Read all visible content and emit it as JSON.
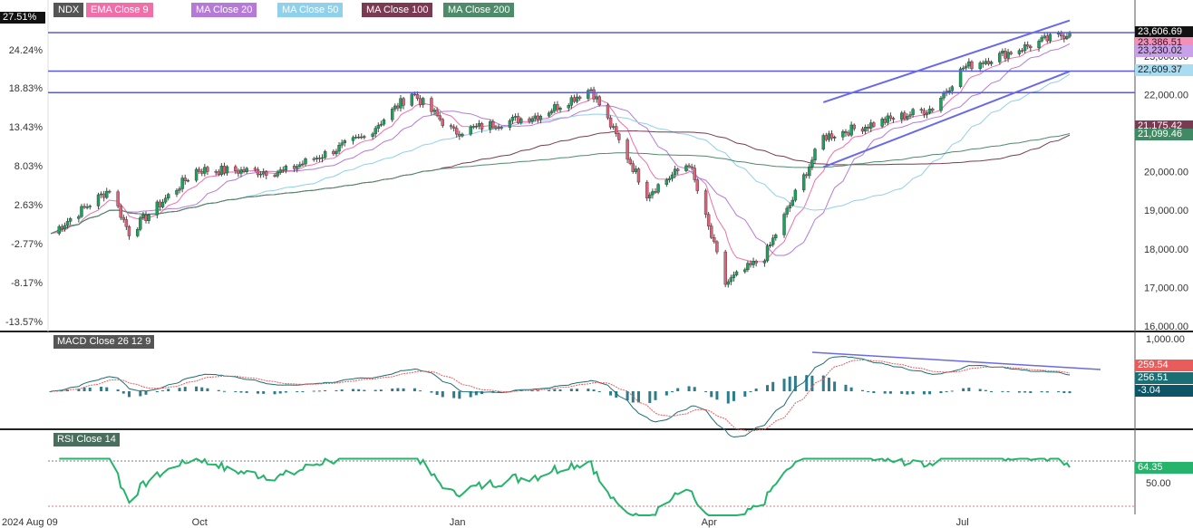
{
  "symbol": "NDX",
  "legend": [
    {
      "label": "NDX",
      "color": "#555555"
    },
    {
      "label": "EMA Close 9",
      "color": "#f06fa8"
    },
    {
      "label": "MA Close 20",
      "color": "#b57ad8"
    },
    {
      "label": "MA Close 50",
      "color": "#8fd0ea"
    },
    {
      "label": "MA Close 100",
      "color": "#7a3a52"
    },
    {
      "label": "MA Close 200",
      "color": "#4f8a6a"
    }
  ],
  "current_pct": "27.51%",
  "pct_axis": [
    "24.24%",
    "18.83%",
    "13.43%",
    "8.03%",
    "2.63%",
    "-2.77%",
    "-8.17%",
    "-13.57%"
  ],
  "price_axis": [
    "23,000.00",
    "22,000.00",
    "21,000.00",
    "20,000.00",
    "19,000.00",
    "18,000.00",
    "17,000.00",
    "16,000.00"
  ],
  "price_tags": [
    {
      "label": "23,606.69",
      "bg": "#111111",
      "fg": "#ffffff"
    },
    {
      "label": "23,386.51",
      "bg": "#f48fb8",
      "fg": "#222222"
    },
    {
      "label": "23,230.02",
      "bg": "#c9a0ea",
      "fg": "#222222"
    },
    {
      "label": "22,609.37",
      "bg": "#a9dcf0",
      "fg": "#222222"
    },
    {
      "label": "21,175.42",
      "bg": "#7a3a52",
      "fg": "#ffffff"
    },
    {
      "label": "21,099.46",
      "bg": "#3f8a62",
      "fg": "#ffffff"
    }
  ],
  "macd": {
    "label": "MACD Close 26 12 9",
    "axis": [
      "1,000.00"
    ],
    "tags": [
      {
        "label": "259.54",
        "bg": "#e85c5c",
        "fg": "#ffffff"
      },
      {
        "label": "256.51",
        "bg": "#1b6e73",
        "fg": "#ffffff"
      },
      {
        "label": "-3.04",
        "bg": "#0d5566",
        "fg": "#ffffff"
      }
    ]
  },
  "rsi": {
    "label": "RSI Close 14",
    "axis": [
      "50.00"
    ],
    "tag": {
      "label": "64.35",
      "bg": "#26b36b",
      "fg": "#ffffff"
    },
    "upper_level": 70,
    "lower_level": 30
  },
  "x_axis": [
    "2024 Aug 09",
    "Oct",
    "Jan",
    "Apr",
    "Jul"
  ],
  "chart_data": {
    "type": "candlestick",
    "title": "NDX",
    "period": [
      "2024-08-09",
      "2025-07"
    ],
    "y_range_price": [
      16000,
      23700
    ],
    "last_close": 23606.69,
    "approx_closes": [
      {
        "date": "2024-08-09",
        "close": 18400
      },
      {
        "date": "2024-08-30",
        "close": 19550
      },
      {
        "date": "2024-09-06",
        "close": 18420
      },
      {
        "date": "2024-09-30",
        "close": 20050
      },
      {
        "date": "2024-10-31",
        "close": 20000
      },
      {
        "date": "2024-11-29",
        "close": 20900
      },
      {
        "date": "2024-12-16",
        "close": 22050
      },
      {
        "date": "2024-12-31",
        "close": 21020
      },
      {
        "date": "2025-01-31",
        "close": 21480
      },
      {
        "date": "2025-02-18",
        "close": 22150
      },
      {
        "date": "2025-03-10",
        "close": 19430
      },
      {
        "date": "2025-03-25",
        "close": 20230
      },
      {
        "date": "2025-04-07",
        "close": 17100
      },
      {
        "date": "2025-04-21",
        "close": 17800
      },
      {
        "date": "2025-05-12",
        "close": 20900
      },
      {
        "date": "2025-06-20",
        "close": 21650
      },
      {
        "date": "2025-07-01",
        "close": 22700
      },
      {
        "date": "2025-07-30",
        "close": 23400
      },
      {
        "date": "2025-08-08",
        "close": 23606.69
      }
    ],
    "series": [
      {
        "name": "EMA Close 9",
        "last": 23386.51
      },
      {
        "name": "MA Close 20",
        "last": 23230.02
      },
      {
        "name": "MA Close 50",
        "last": 22609.37
      },
      {
        "name": "MA Close 100",
        "last": 21175.42
      },
      {
        "name": "MA Close 200",
        "last": 21099.46
      }
    ],
    "horizontal_levels": [
      23606.69,
      22609.37,
      22050
    ],
    "macd_last": {
      "macd": 256.51,
      "signal": 259.54,
      "histogram": -3.04
    },
    "rsi_last": 64.35
  }
}
